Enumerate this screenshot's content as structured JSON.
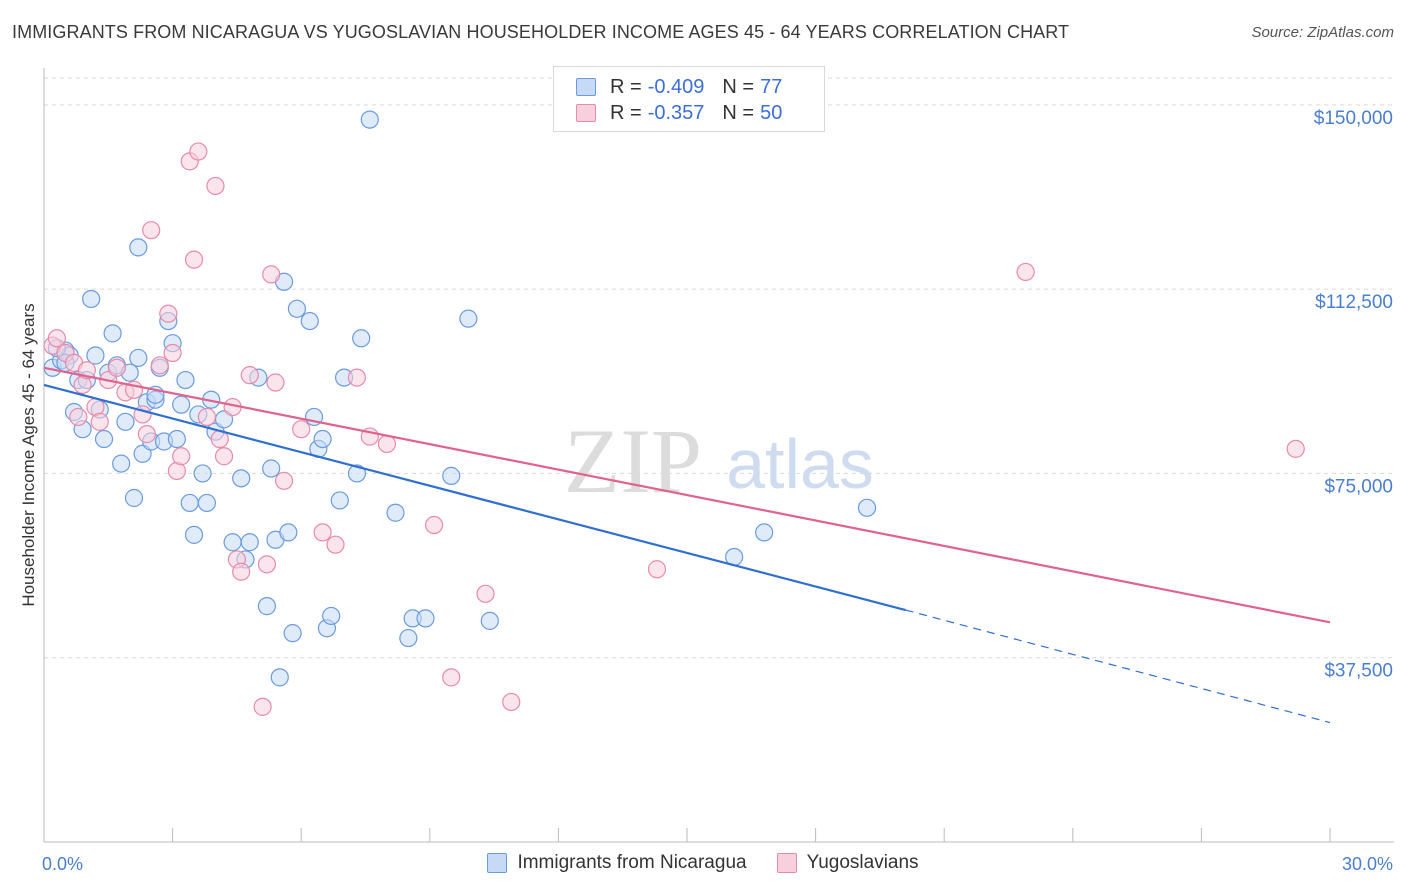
{
  "header": {
    "title": "IMMIGRANTS FROM NICARAGUA VS YUGOSLAVIAN HOUSEHOLDER INCOME AGES 45 - 64 YEARS CORRELATION CHART",
    "source": "Source: ZipAtlas.com"
  },
  "watermark": {
    "zip": "ZIP",
    "atlas": "atlas"
  },
  "legend": {
    "rows": [
      {
        "r_label": "R =",
        "r_value": "-0.409",
        "n_label": "N =",
        "n_value": "77",
        "color": "#6a9be0",
        "fill": "#c7daf5"
      },
      {
        "r_label": "R =",
        "r_value": "-0.357",
        "n_label": "N =",
        "n_value": "50",
        "color": "#e88aab",
        "fill": "#f8cfdd"
      }
    ]
  },
  "bottom_legend": {
    "items": [
      {
        "label": "Immigrants from Nicaragua",
        "color": "#6a9be0",
        "fill": "#c7daf5"
      },
      {
        "label": "Yugoslavians",
        "color": "#e88aab",
        "fill": "#f8cfdd"
      }
    ]
  },
  "chart_data": {
    "type": "scatter",
    "title": "IMMIGRANTS FROM NICARAGUA VS YUGOSLAVIAN HOUSEHOLDER INCOME AGES 45 - 64 YEARS CORRELATION CHART",
    "ylabel": "Householder Income Ages 45 - 64 years",
    "xlabel": "",
    "x_range": [
      0,
      30
    ],
    "y_range": [
      0,
      157500
    ],
    "x_tick_labels": [
      "0.0%",
      "30.0%"
    ],
    "y_ticks": [
      37500,
      75000,
      112500,
      150000
    ],
    "y_tick_labels": [
      "$37,500",
      "$75,000",
      "$112,500",
      "$150,000"
    ],
    "grid": "horizontal dashed",
    "legend_position": "top-center",
    "series": [
      {
        "name": "Immigrants from Nicaragua",
        "color": "#6a9be0",
        "fill": "#c7daf5",
        "trend": {
          "x": [
            0,
            20.1
          ],
          "y": [
            93000,
            47200
          ],
          "dashed_to": [
            30,
            24300
          ]
        },
        "points": [
          [
            0.2,
            96500
          ],
          [
            0.4,
            98000
          ],
          [
            0.5,
            100000
          ],
          [
            0.6,
            99000
          ],
          [
            0.7,
            87500
          ],
          [
            0.8,
            94000
          ],
          [
            0.9,
            84000
          ],
          [
            1.0,
            94000
          ],
          [
            1.1,
            110500
          ],
          [
            1.2,
            99000
          ],
          [
            1.3,
            88000
          ],
          [
            1.4,
            82000
          ],
          [
            1.5,
            95500
          ],
          [
            1.6,
            103500
          ],
          [
            1.7,
            97000
          ],
          [
            1.8,
            77000
          ],
          [
            1.9,
            85500
          ],
          [
            2.0,
            95500
          ],
          [
            2.1,
            70000
          ],
          [
            2.2,
            98500
          ],
          [
            2.3,
            79000
          ],
          [
            2.4,
            89500
          ],
          [
            2.5,
            81500
          ],
          [
            2.6,
            90000
          ],
          [
            2.7,
            96500
          ],
          [
            2.8,
            81500
          ],
          [
            2.9,
            106000
          ],
          [
            3.0,
            101500
          ],
          [
            3.1,
            82000
          ],
          [
            3.2,
            89000
          ],
          [
            3.3,
            94000
          ],
          [
            3.4,
            69000
          ],
          [
            3.5,
            62500
          ],
          [
            3.6,
            87000
          ],
          [
            3.7,
            75000
          ],
          [
            3.8,
            69000
          ],
          [
            3.9,
            90000
          ],
          [
            4.0,
            83500
          ],
          [
            4.2,
            86000
          ],
          [
            4.4,
            61000
          ],
          [
            4.6,
            74000
          ],
          [
            4.7,
            57500
          ],
          [
            4.8,
            61000
          ],
          [
            5.0,
            94500
          ],
          [
            5.2,
            48000
          ],
          [
            5.3,
            76000
          ],
          [
            5.4,
            61500
          ],
          [
            5.6,
            114000
          ],
          [
            5.7,
            63000
          ],
          [
            5.8,
            42500
          ],
          [
            5.9,
            108500
          ],
          [
            6.2,
            106000
          ],
          [
            6.3,
            86500
          ],
          [
            6.4,
            80000
          ],
          [
            6.5,
            82000
          ],
          [
            6.6,
            43500
          ],
          [
            6.7,
            46000
          ],
          [
            6.9,
            69500
          ],
          [
            7.0,
            94500
          ],
          [
            7.3,
            75000
          ],
          [
            7.4,
            102500
          ],
          [
            7.6,
            147000
          ],
          [
            8.2,
            67000
          ],
          [
            8.5,
            41500
          ],
          [
            8.6,
            45500
          ],
          [
            8.9,
            45500
          ],
          [
            9.5,
            74500
          ],
          [
            9.9,
            106500
          ],
          [
            10.4,
            45000
          ],
          [
            2.2,
            121000
          ],
          [
            2.6,
            91000
          ],
          [
            5.5,
            33500
          ],
          [
            16.1,
            58000
          ],
          [
            16.8,
            63000
          ],
          [
            19.2,
            68000
          ],
          [
            0.3,
            100500
          ],
          [
            0.5,
            97500
          ]
        ]
      },
      {
        "name": "Yugoslavians",
        "color": "#e88aab",
        "fill": "#f8cfdd",
        "trend": {
          "x": [
            0,
            30
          ],
          "y": [
            96500,
            44700
          ]
        },
        "points": [
          [
            0.2,
            101000
          ],
          [
            0.3,
            102500
          ],
          [
            0.5,
            99500
          ],
          [
            0.7,
            97500
          ],
          [
            0.8,
            86500
          ],
          [
            0.9,
            93000
          ],
          [
            1.0,
            96000
          ],
          [
            1.2,
            88500
          ],
          [
            1.3,
            85500
          ],
          [
            1.5,
            94000
          ],
          [
            1.7,
            96500
          ],
          [
            1.9,
            91500
          ],
          [
            2.1,
            92000
          ],
          [
            2.3,
            87000
          ],
          [
            2.4,
            83000
          ],
          [
            2.5,
            124500
          ],
          [
            2.7,
            97000
          ],
          [
            2.9,
            107500
          ],
          [
            3.0,
            99500
          ],
          [
            3.1,
            75500
          ],
          [
            3.2,
            78500
          ],
          [
            3.4,
            138500
          ],
          [
            3.5,
            118500
          ],
          [
            3.6,
            140500
          ],
          [
            3.8,
            86500
          ],
          [
            4.0,
            133500
          ],
          [
            4.1,
            82000
          ],
          [
            4.2,
            78500
          ],
          [
            4.4,
            88500
          ],
          [
            4.5,
            57500
          ],
          [
            4.6,
            55000
          ],
          [
            4.8,
            95000
          ],
          [
            5.1,
            27500
          ],
          [
            5.2,
            56500
          ],
          [
            5.3,
            115500
          ],
          [
            5.4,
            93500
          ],
          [
            5.6,
            73500
          ],
          [
            6.0,
            84000
          ],
          [
            6.5,
            63000
          ],
          [
            6.8,
            60500
          ],
          [
            7.3,
            94500
          ],
          [
            7.6,
            82500
          ],
          [
            8.0,
            81000
          ],
          [
            9.1,
            64500
          ],
          [
            9.5,
            33500
          ],
          [
            10.3,
            50500
          ],
          [
            10.9,
            28500
          ],
          [
            14.3,
            55500
          ],
          [
            22.9,
            116000
          ],
          [
            29.2,
            80000
          ]
        ]
      }
    ]
  }
}
